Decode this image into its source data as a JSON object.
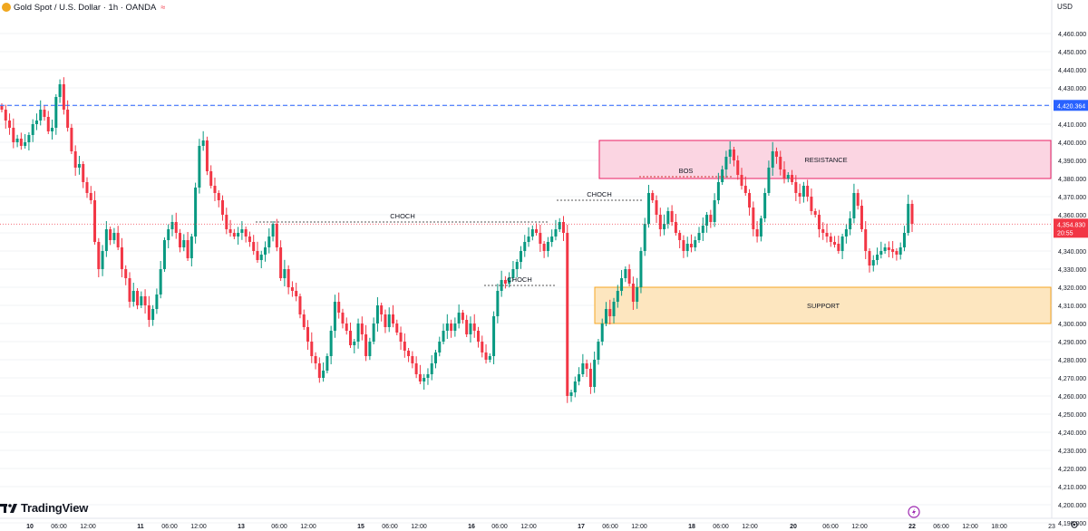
{
  "header": {
    "symbol_title": "Gold Spot / U.S. Dollar · 1h · OANDA",
    "currency": "USD",
    "brand": "TradingView"
  },
  "colors": {
    "up": "#089981",
    "down": "#f23645",
    "resistance_fill": "#fbd5e2",
    "resistance_border": "#e91e63",
    "support_fill": "#fde6bf",
    "support_border": "#f5a623",
    "reference_line": "#2962ff",
    "bos_line": "#d32f2f"
  },
  "chart_data": {
    "type": "candlestick",
    "y_axis": {
      "min": 4190,
      "max": 4465,
      "step": 10,
      "tick_labels": [
        "4,460.000",
        "4,450.000",
        "4,440.000",
        "4,430.000",
        "4,420.000",
        "4,410.000",
        "4,400.000",
        "4,390.000",
        "4,380.000",
        "4,370.000",
        "4,360.000",
        "4,350.000",
        "4,340.000",
        "4,330.000",
        "4,320.000",
        "4,310.000",
        "4,300.000",
        "4,290.000",
        "4,280.000",
        "4,270.000",
        "4,260.000",
        "4,250.000",
        "4,240.000",
        "4,230.000",
        "4,220.000",
        "4,210.000",
        "4,200.000",
        "4,190.000"
      ]
    },
    "x_axis": {
      "tick_labels": [
        "10",
        "06:00",
        "12:00",
        "11",
        "06:00",
        "12:00",
        "13",
        "06:00",
        "12:00",
        "15",
        "06:00",
        "12:00",
        "16",
        "06:00",
        "12:00",
        "17",
        "06:00",
        "12:00",
        "18",
        "06:00",
        "12:00",
        "20",
        "06:00",
        "12:00",
        "22",
        "06:00",
        "12:00",
        "18:00",
        "23"
      ],
      "bold_labels": [
        "10",
        "11",
        "13",
        "15",
        "16",
        "17",
        "18",
        "20",
        "22"
      ]
    },
    "price_labels": {
      "reference": "4,420.364",
      "current": "4,354.830",
      "countdown": "20:55"
    },
    "reference_level": 4420.364,
    "current_price": 4354.83,
    "zones": [
      {
        "label": "RESISTANCE",
        "from": 4380,
        "to": 4401
      },
      {
        "label": "SUPPORT",
        "from": 4300,
        "to": 4320
      }
    ],
    "levels": [
      {
        "label": "CHOCH",
        "value": 4356
      },
      {
        "label": "CHOCH",
        "value": 4321
      },
      {
        "label": "CHOCH",
        "value": 4368
      },
      {
        "label": "BOS",
        "value": 4381
      }
    ],
    "close_path": [
      4418,
      4412,
      4408,
      4400,
      4402,
      4398,
      4400,
      4404,
      4410,
      4412,
      4418,
      4414,
      4406,
      4408,
      4425,
      4432,
      4418,
      4408,
      4395,
      4386,
      4388,
      4378,
      4372,
      4368,
      4345,
      4330,
      4340,
      4352,
      4346,
      4350,
      4342,
      4330,
      4325,
      4312,
      4318,
      4310,
      4315,
      4310,
      4302,
      4308,
      4316,
      4330,
      4346,
      4352,
      4356,
      4350,
      4342,
      4346,
      4336,
      4348,
      4375,
      4398,
      4401,
      4384,
      4376,
      4372,
      4368,
      4360,
      4352,
      4350,
      4348,
      4350,
      4352,
      4348,
      4345,
      4340,
      4335,
      4338,
      4342,
      4348,
      4355,
      4342,
      4325,
      4330,
      4320,
      4318,
      4315,
      4305,
      4298,
      4290,
      4282,
      4278,
      4270,
      4274,
      4282,
      4296,
      4312,
      4306,
      4300,
      4296,
      4288,
      4290,
      4300,
      4294,
      4282,
      4290,
      4300,
      4310,
      4305,
      4298,
      4305,
      4300,
      4295,
      4290,
      4285,
      4282,
      4278,
      4272,
      4268,
      4270,
      4272,
      4278,
      4284,
      4290,
      4296,
      4300,
      4296,
      4300,
      4306,
      4302,
      4294,
      4300,
      4296,
      4290,
      4284,
      4280,
      4282,
      4304,
      4318,
      4324,
      4322,
      4325,
      4330,
      4334,
      4340,
      4345,
      4348,
      4352,
      4350,
      4344,
      4340,
      4345,
      4348,
      4352,
      4356,
      4350,
      4260,
      4262,
      4268,
      4272,
      4278,
      4275,
      4265,
      4280,
      4290,
      4300,
      4308,
      4304,
      4312,
      4318,
      4325,
      4330,
      4322,
      4312,
      4320,
      4340,
      4355,
      4372,
      4368,
      4360,
      4352,
      4355,
      4362,
      4356,
      4350,
      4346,
      4340,
      4344,
      4342,
      4346,
      4350,
      4354,
      4360,
      4356,
      4368,
      4378,
      4385,
      4392,
      4396,
      4390,
      4382,
      4376,
      4372,
      4364,
      4352,
      4348,
      4358,
      4372,
      4386,
      4395,
      4392,
      4385,
      4380,
      4382,
      4378,
      4372,
      4370,
      4376,
      4370,
      4362,
      4360,
      4352,
      4350,
      4348,
      4345,
      4344,
      4340,
      4348,
      4352,
      4358,
      4372,
      4365,
      4352,
      4340,
      4332,
      4335,
      4338,
      4340,
      4342,
      4341,
      4340,
      4338,
      4342,
      4350,
      4366,
      4355
    ]
  }
}
